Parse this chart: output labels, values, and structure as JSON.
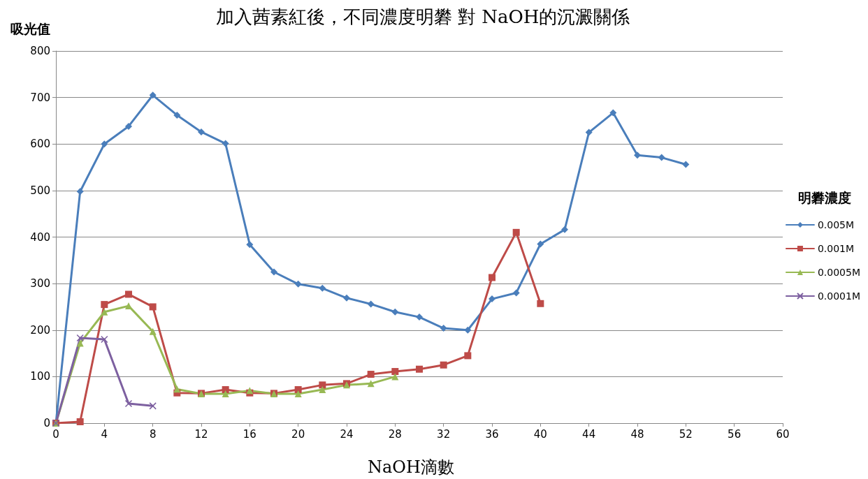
{
  "chart_data": {
    "type": "line",
    "title": "加入茜素紅後，不同濃度明礬 對 NaOH的沉澱關係",
    "xlabel": "NaOH滴數",
    "ylabel": "吸光值",
    "legend_title": "明礬濃度",
    "legend": "right",
    "grid": "y",
    "xlim": [
      0,
      60
    ],
    "xticks": [
      0,
      4,
      8,
      12,
      16,
      20,
      24,
      28,
      32,
      36,
      40,
      44,
      48,
      52,
      56,
      60
    ],
    "ylim": [
      0,
      800
    ],
    "yticks": [
      0,
      100,
      200,
      300,
      400,
      500,
      600,
      700,
      800
    ],
    "series": [
      {
        "name": "0.005M",
        "color": "#4a7ebb",
        "marker": "diamond",
        "x": [
          0,
          2,
          4,
          6,
          8,
          10,
          12,
          14,
          16,
          18,
          20,
          22,
          24,
          26,
          28,
          30,
          32,
          34,
          36,
          38,
          40,
          42,
          44,
          46,
          48,
          50,
          52
        ],
        "values": [
          0,
          498,
          600,
          638,
          705,
          662,
          626,
          601,
          384,
          325,
          299,
          290,
          269,
          256,
          239,
          228,
          204,
          200,
          267,
          280,
          385,
          416,
          625,
          667,
          576,
          571,
          556
        ]
      },
      {
        "name": "0.001M",
        "color": "#be4b48",
        "marker": "square",
        "x": [
          0,
          2,
          4,
          6,
          8,
          10,
          12,
          14,
          16,
          18,
          20,
          22,
          24,
          26,
          28,
          30,
          32,
          34,
          36,
          38,
          40
        ],
        "values": [
          0,
          3,
          255,
          277,
          250,
          65,
          64,
          72,
          65,
          64,
          72,
          82,
          85,
          105,
          111,
          116,
          125,
          145,
          313,
          410,
          257
        ]
      },
      {
        "name": "0.0005M",
        "color": "#98b954",
        "marker": "triangle",
        "x": [
          0,
          2,
          4,
          6,
          8,
          10,
          12,
          14,
          16,
          18,
          20,
          22,
          24,
          26,
          28
        ],
        "values": [
          0,
          172,
          239,
          252,
          197,
          73,
          63,
          63,
          70,
          63,
          63,
          72,
          82,
          85,
          100
        ]
      },
      {
        "name": "0.0001M",
        "color": "#7d60a0",
        "marker": "cross",
        "x": [
          0,
          2,
          4,
          6,
          8
        ],
        "values": [
          0,
          183,
          180,
          42,
          37
        ]
      }
    ]
  }
}
